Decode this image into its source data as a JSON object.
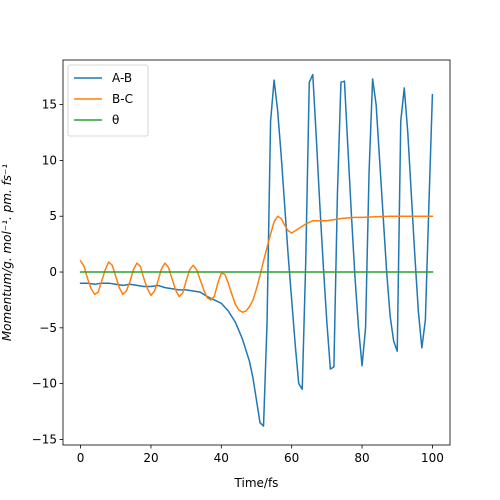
{
  "chart_data": {
    "type": "line",
    "xlabel": "Time/fs",
    "ylabel": "Momentum/g. mol⁻¹. pm. fs⁻¹",
    "xlim": [
      -5,
      105
    ],
    "ylim": [
      -15.5,
      19.0
    ],
    "xticks": [
      0,
      20,
      40,
      60,
      80,
      100
    ],
    "yticks": [
      -15,
      -10,
      -5,
      0,
      5,
      10,
      15
    ],
    "grid": false,
    "legend_position": "top-left",
    "series": [
      {
        "name": "A-B",
        "color": "#1f77b4",
        "points": [
          [
            0,
            -1.0
          ],
          [
            2,
            -1.0
          ],
          [
            4,
            -1.1
          ],
          [
            6,
            -1.0
          ],
          [
            8,
            -1.0
          ],
          [
            10,
            -1.1
          ],
          [
            12,
            -1.2
          ],
          [
            14,
            -1.1
          ],
          [
            16,
            -1.2
          ],
          [
            18,
            -1.3
          ],
          [
            20,
            -1.3
          ],
          [
            22,
            -1.2
          ],
          [
            24,
            -1.4
          ],
          [
            26,
            -1.5
          ],
          [
            28,
            -1.6
          ],
          [
            30,
            -1.6
          ],
          [
            32,
            -1.7
          ],
          [
            34,
            -1.8
          ],
          [
            36,
            -2.2
          ],
          [
            38,
            -2.5
          ],
          [
            40,
            -2.8
          ],
          [
            42,
            -3.5
          ],
          [
            44,
            -4.5
          ],
          [
            46,
            -6.0
          ],
          [
            48,
            -8.0
          ],
          [
            49,
            -9.5
          ],
          [
            50,
            -11.5
          ],
          [
            51,
            -13.5
          ],
          [
            52,
            -13.8
          ],
          [
            53,
            -4.5
          ],
          [
            54,
            13.5
          ],
          [
            55,
            17.2
          ],
          [
            56,
            14.5
          ],
          [
            57,
            10.5
          ],
          [
            58,
            6.0
          ],
          [
            59,
            1.5
          ],
          [
            60,
            -2.5
          ],
          [
            61,
            -6.5
          ],
          [
            62,
            -10.0
          ],
          [
            63,
            -10.5
          ],
          [
            64,
            1.0
          ],
          [
            65,
            17.0
          ],
          [
            66,
            17.7
          ],
          [
            67,
            12.0
          ],
          [
            68,
            6.0
          ],
          [
            69,
            0.5
          ],
          [
            70,
            -4.5
          ],
          [
            71,
            -8.7
          ],
          [
            72,
            -8.5
          ],
          [
            73,
            7.0
          ],
          [
            74,
            17.0
          ],
          [
            75,
            17.1
          ],
          [
            76,
            11.0
          ],
          [
            77,
            5.0
          ],
          [
            78,
            -0.5
          ],
          [
            79,
            -5.0
          ],
          [
            80,
            -8.4
          ],
          [
            81,
            -5.0
          ],
          [
            82,
            9.0
          ],
          [
            83,
            17.3
          ],
          [
            84,
            15.0
          ],
          [
            85,
            10.0
          ],
          [
            86,
            5.0
          ],
          [
            87,
            0.0
          ],
          [
            88,
            -4.0
          ],
          [
            89,
            -6.2
          ],
          [
            90,
            -7.1
          ],
          [
            91,
            13.5
          ],
          [
            92,
            16.5
          ],
          [
            93,
            12.5
          ],
          [
            94,
            7.0
          ],
          [
            95,
            1.5
          ],
          [
            96,
            -3.5
          ],
          [
            97,
            -6.8
          ],
          [
            98,
            -4.3
          ],
          [
            99,
            6.0
          ],
          [
            100,
            15.9
          ]
        ]
      },
      {
        "name": "B-C",
        "color": "#ff7f0e",
        "points": [
          [
            0,
            1.0
          ],
          [
            1,
            0.5
          ],
          [
            2,
            -0.6
          ],
          [
            3,
            -1.5
          ],
          [
            4,
            -2.0
          ],
          [
            5,
            -1.8
          ],
          [
            6,
            -0.8
          ],
          [
            7,
            0.2
          ],
          [
            8,
            0.9
          ],
          [
            9,
            0.6
          ],
          [
            10,
            -0.4
          ],
          [
            11,
            -1.4
          ],
          [
            12,
            -2.0
          ],
          [
            13,
            -1.7
          ],
          [
            14,
            -0.9
          ],
          [
            15,
            0.2
          ],
          [
            16,
            0.8
          ],
          [
            17,
            0.5
          ],
          [
            18,
            -0.6
          ],
          [
            19,
            -1.5
          ],
          [
            20,
            -2.1
          ],
          [
            21,
            -1.7
          ],
          [
            22,
            -0.8
          ],
          [
            23,
            0.3
          ],
          [
            24,
            0.8
          ],
          [
            25,
            0.4
          ],
          [
            26,
            -0.6
          ],
          [
            27,
            -1.6
          ],
          [
            28,
            -2.2
          ],
          [
            29,
            -1.9
          ],
          [
            30,
            -0.8
          ],
          [
            31,
            0.2
          ],
          [
            32,
            0.6
          ],
          [
            33,
            0.2
          ],
          [
            34,
            -0.7
          ],
          [
            35,
            -1.6
          ],
          [
            36,
            -2.3
          ],
          [
            37,
            -2.5
          ],
          [
            38,
            -2.2
          ],
          [
            39,
            -1.0
          ],
          [
            40,
            -0.1
          ],
          [
            41,
            -0.2
          ],
          [
            42,
            -1.0
          ],
          [
            43,
            -2.0
          ],
          [
            44,
            -2.9
          ],
          [
            45,
            -3.4
          ],
          [
            46,
            -3.6
          ],
          [
            47,
            -3.5
          ],
          [
            48,
            -3.1
          ],
          [
            49,
            -2.5
          ],
          [
            50,
            -1.5
          ],
          [
            51,
            -0.3
          ],
          [
            52,
            1.0
          ],
          [
            53,
            2.2
          ],
          [
            54,
            3.4
          ],
          [
            55,
            4.5
          ],
          [
            56,
            5.0
          ],
          [
            57,
            4.8
          ],
          [
            58,
            4.2
          ],
          [
            59,
            3.7
          ],
          [
            60,
            3.5
          ],
          [
            62,
            3.9
          ],
          [
            64,
            4.3
          ],
          [
            66,
            4.6
          ],
          [
            68,
            4.6
          ],
          [
            70,
            4.6
          ],
          [
            72,
            4.7
          ],
          [
            74,
            4.8
          ],
          [
            76,
            4.85
          ],
          [
            78,
            4.9
          ],
          [
            80,
            4.9
          ],
          [
            84,
            4.95
          ],
          [
            88,
            5.0
          ],
          [
            92,
            5.0
          ],
          [
            96,
            5.0
          ],
          [
            100,
            5.0
          ]
        ]
      },
      {
        "name": "θ",
        "color": "#2ca02c",
        "points": [
          [
            0,
            0
          ],
          [
            100,
            0
          ]
        ]
      }
    ]
  }
}
